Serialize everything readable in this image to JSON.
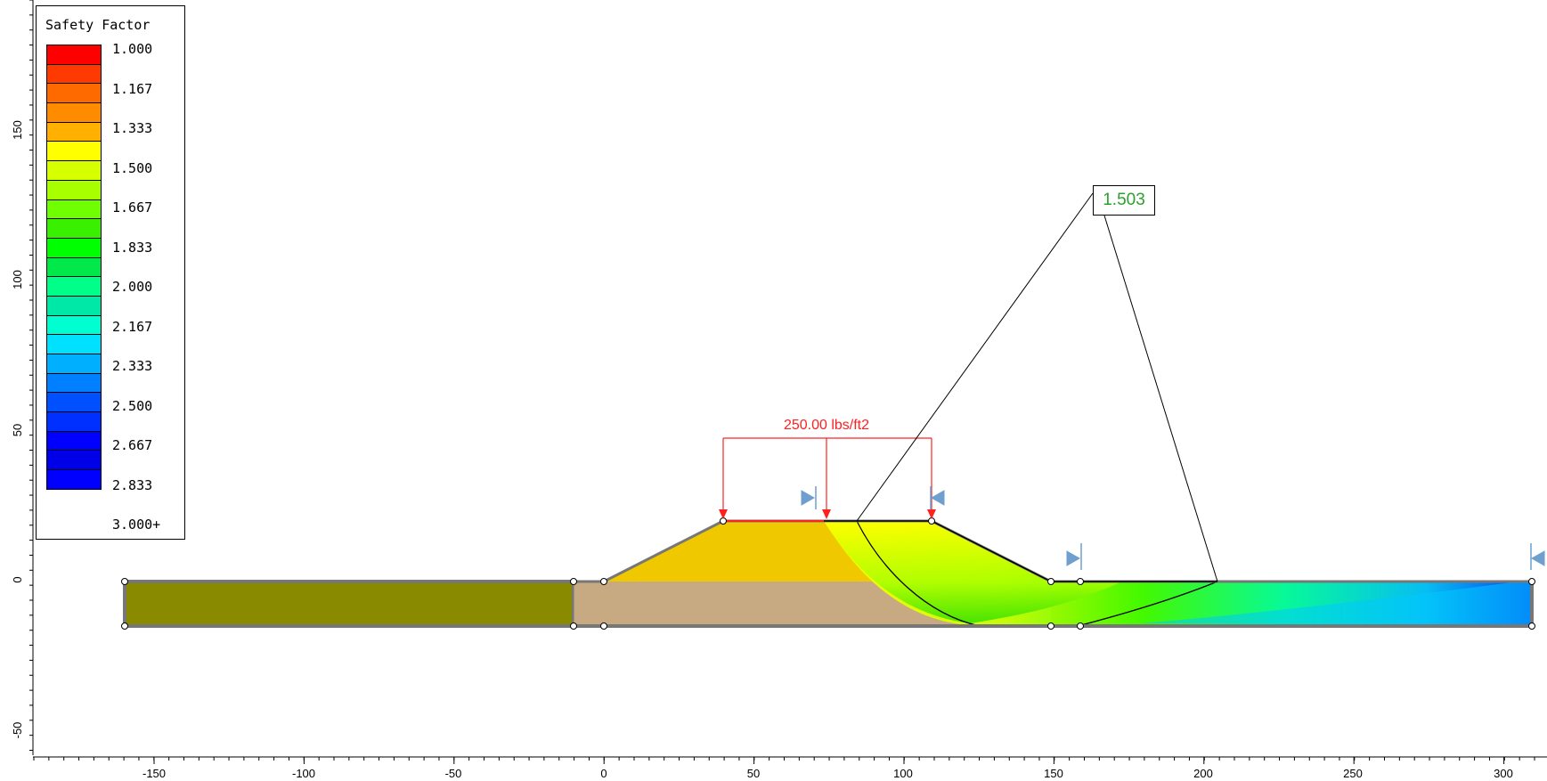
{
  "legend": {
    "title": "Safety Factor",
    "labels": [
      "1.000",
      "1.167",
      "1.333",
      "1.500",
      "1.667",
      "1.833",
      "2.000",
      "2.167",
      "2.333",
      "2.500",
      "2.667",
      "2.833",
      "3.000+"
    ],
    "colors": [
      "#ff0000",
      "#ff3a00",
      "#ff6a00",
      "#ff8c00",
      "#ffb000",
      "#ffff00",
      "#d6ff00",
      "#a8ff00",
      "#70ff00",
      "#38f000",
      "#00ff00",
      "#00e84a",
      "#00ff88",
      "#00e8a8",
      "#00ffd0",
      "#00e0ff",
      "#00b0ff",
      "#0080ff",
      "#0050ff",
      "#0030ff",
      "#0000ff",
      "#0000e8",
      "#0000ff"
    ]
  },
  "critical_fs": "1.503",
  "load_label": "250.00 lbs/ft2",
  "axes": {
    "x_ticks": [
      "-150",
      "-100",
      "-50",
      "0",
      "50",
      "100",
      "150",
      "200",
      "250",
      "300"
    ],
    "y_ticks": [
      "150",
      "100",
      "50",
      "0",
      "-50"
    ]
  },
  "materials": {
    "embankment_color": "#f0c800",
    "foundation_color": "#c8aa82",
    "clay_color": "#8a8a00"
  }
}
